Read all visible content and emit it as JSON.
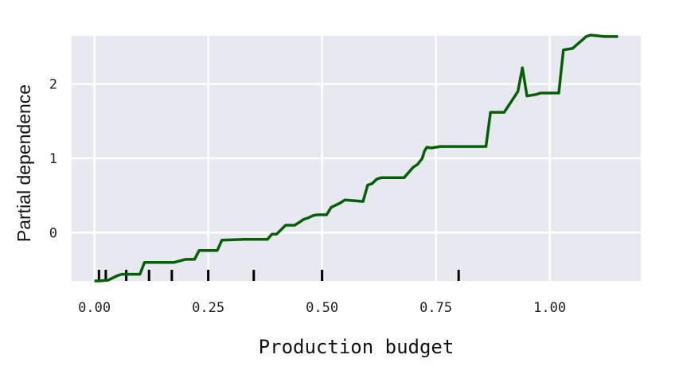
{
  "chart_data": {
    "type": "line",
    "title": "",
    "xlabel": "Production budget",
    "ylabel": "Partial dependence",
    "xlim": [
      -0.05,
      1.2
    ],
    "ylim": [
      -0.65,
      2.65
    ],
    "xticks": [
      0.0,
      0.25,
      0.5,
      0.75,
      1.0
    ],
    "xtick_labels": [
      "0.00",
      "0.25",
      "0.50",
      "0.75",
      "1.00"
    ],
    "yticks": [
      0,
      1,
      2
    ],
    "ytick_labels": [
      "0",
      "1",
      "2"
    ],
    "grid": true,
    "background": "#e8e8f0",
    "series_color": "#056005",
    "series": [
      {
        "x": [
          0.0,
          0.01,
          0.03,
          0.05,
          0.06,
          0.1,
          0.11,
          0.175,
          0.2,
          0.22,
          0.23,
          0.27,
          0.28,
          0.33,
          0.38,
          0.39,
          0.4,
          0.42,
          0.44,
          0.45,
          0.46,
          0.47,
          0.48,
          0.49,
          0.51,
          0.52,
          0.54,
          0.55,
          0.59,
          0.6,
          0.61,
          0.62,
          0.63,
          0.68,
          0.7,
          0.71,
          0.72,
          0.725,
          0.73,
          0.74,
          0.76,
          0.81,
          0.86,
          0.87,
          0.9,
          0.93,
          0.94,
          0.95,
          0.97,
          0.98,
          1.02,
          1.03,
          1.05,
          1.08,
          1.09,
          1.12,
          1.15
        ],
        "y": [
          -0.65,
          -0.65,
          -0.64,
          -0.58,
          -0.56,
          -0.56,
          -0.4,
          -0.4,
          -0.36,
          -0.36,
          -0.24,
          -0.24,
          -0.1,
          -0.09,
          -0.09,
          -0.02,
          -0.02,
          0.1,
          0.1,
          0.14,
          0.18,
          0.2,
          0.23,
          0.24,
          0.24,
          0.34,
          0.4,
          0.44,
          0.42,
          0.64,
          0.66,
          0.72,
          0.74,
          0.74,
          0.88,
          0.92,
          1.0,
          1.1,
          1.15,
          1.14,
          1.16,
          1.16,
          1.16,
          1.62,
          1.62,
          1.9,
          2.22,
          1.84,
          1.86,
          1.88,
          1.88,
          2.46,
          2.48,
          2.64,
          2.66,
          2.64,
          2.64
        ]
      }
    ],
    "rug": [
      0.01,
      0.025,
      0.07,
      0.12,
      0.17,
      0.25,
      0.35,
      0.5,
      0.8
    ]
  }
}
